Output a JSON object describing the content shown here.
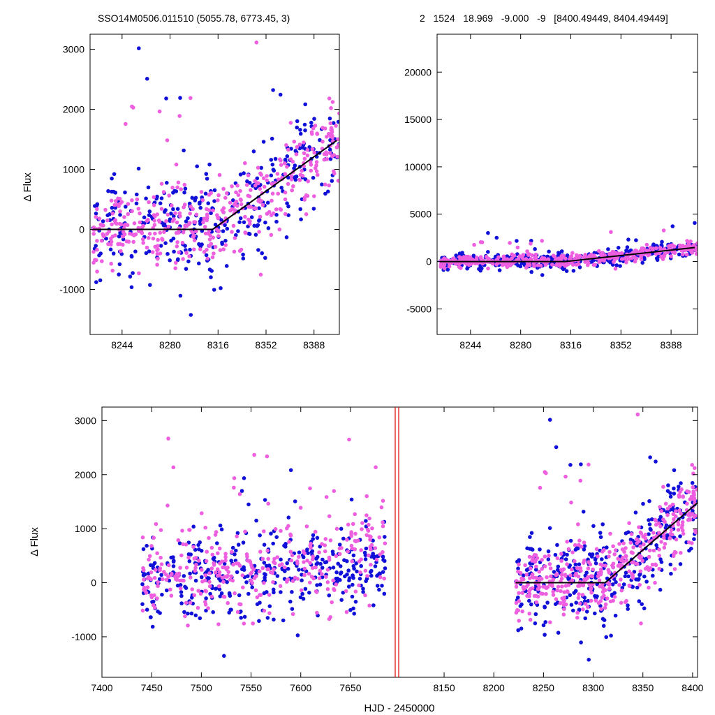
{
  "chart_data": [
    {
      "type": "scatter",
      "panel": "top-left",
      "title": "SSO14M0506.011510 (5055.78, 6773.45,    3)",
      "xlabel": "",
      "ylabel": "Δ Flux",
      "xlim": [
        8220,
        8407
      ],
      "ylim": [
        -1750,
        3250
      ],
      "xticks": [
        8244,
        8280,
        8316,
        8352,
        8388
      ],
      "yticks": [
        -1000,
        0,
        1000,
        2000,
        3000
      ],
      "grid": false,
      "series": [
        {
          "color": "#1010d8",
          "pattern": "noisy-scatter"
        },
        {
          "color": "#ee5fe0",
          "pattern": "noisy-scatter"
        }
      ],
      "model_line": {
        "color": "#000000",
        "x": [
          8222,
          8312,
          8405
        ],
        "y": [
          0,
          0,
          1480
        ]
      }
    },
    {
      "type": "scatter",
      "panel": "top-right",
      "title": "2   1524   18.969   -9.000   -9   [8400.49449, 8404.49449]",
      "xlabel": "",
      "ylabel": "",
      "xlim": [
        8220,
        8407
      ],
      "ylim": [
        -7700,
        24000
      ],
      "xticks": [
        8244,
        8280,
        8316,
        8352,
        8388
      ],
      "yticks": [
        -5000,
        0,
        5000,
        10000,
        15000,
        20000
      ],
      "grid": false,
      "series": [
        {
          "color": "#1010d8",
          "pattern": "noisy-scatter"
        },
        {
          "color": "#ee5fe0",
          "pattern": "noisy-scatter"
        }
      ],
      "model_line": {
        "color": "#000000",
        "x": [
          8222,
          8312,
          8405
        ],
        "y": [
          0,
          0,
          1480
        ]
      }
    },
    {
      "type": "scatter",
      "panel": "bottom",
      "title": "",
      "xlabel": "HJD - 2450000",
      "ylabel": "Δ Flux",
      "ylim": [
        -1750,
        3250
      ],
      "yticks": [
        -1000,
        0,
        1000,
        2000,
        3000
      ],
      "segments": [
        {
          "xlim": [
            7400,
            7695
          ],
          "xticks": [
            7400,
            7450,
            7500,
            7550,
            7600,
            7650
          ]
        },
        {
          "xlim": [
            8105,
            8405
          ],
          "xticks": [
            8150,
            8200,
            8250,
            8300,
            8350,
            8400
          ]
        }
      ],
      "break_marker_color": "#e00000",
      "grid": false,
      "series": [
        {
          "color": "#1010d8",
          "pattern": "noisy-scatter"
        },
        {
          "color": "#ee5fe0",
          "pattern": "noisy-scatter"
        }
      ],
      "model_line": {
        "color": "#000000",
        "x": [
          8222,
          8312,
          8405
        ],
        "y": [
          0,
          0,
          1480
        ]
      }
    }
  ]
}
